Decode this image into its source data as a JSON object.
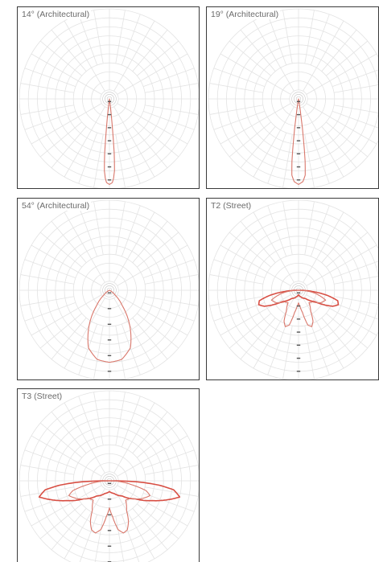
{
  "colors": {
    "grid": "#e3e3e3",
    "grid_center": "#cfcfcf",
    "curve": "#d9776b",
    "curve_strong": "#d84f44",
    "tick": "#555555",
    "border": "#3a3a3a"
  },
  "chart_data": [
    {
      "type": "polar",
      "title": "14° (Architectural)",
      "grid": true,
      "series": [
        {
          "values": [
            [
              0,
              95
            ],
            [
              2,
              93
            ],
            [
              3,
              88
            ],
            [
              4,
              80
            ],
            [
              5,
              60
            ],
            [
              6,
              30
            ],
            [
              7,
              10
            ],
            [
              8,
              0
            ]
          ]
        }
      ]
    },
    {
      "type": "polar",
      "title": "19° (Architectural)",
      "grid": true,
      "series": [
        {
          "values": [
            [
              0,
              95
            ],
            [
              3,
              92
            ],
            [
              5,
              85
            ],
            [
              6,
              70
            ],
            [
              7,
              45
            ],
            [
              8,
              20
            ],
            [
              9,
              5
            ],
            [
              10,
              0
            ]
          ]
        }
      ]
    },
    {
      "type": "polar",
      "title": "54° (Architectural)",
      "grid": true,
      "series": [
        {
          "values": [
            [
              0,
              80
            ],
            [
              10,
              78
            ],
            [
              20,
              68
            ],
            [
              30,
              45
            ],
            [
              40,
              22
            ],
            [
              50,
              8
            ],
            [
              60,
              2
            ],
            [
              70,
              0
            ]
          ]
        }
      ]
    },
    {
      "type": "polar",
      "title": "T2 (Street)",
      "grid": true,
      "series": [
        {
          "values": [
            [
              0,
              5
            ],
            [
              20,
              8
            ],
            [
              40,
              12
            ],
            [
              55,
              22
            ],
            [
              60,
              32
            ],
            [
              65,
              42
            ],
            [
              70,
              47
            ],
            [
              75,
              45
            ],
            [
              80,
              32
            ],
            [
              85,
              15
            ],
            [
              90,
              0
            ]
          ]
        },
        {
          "values": [
            [
              0,
              14
            ],
            [
              5,
              18
            ],
            [
              10,
              25
            ],
            [
              15,
              40
            ],
            [
              20,
              43
            ],
            [
              25,
              38
            ],
            [
              30,
              27
            ],
            [
              40,
              18
            ],
            [
              50,
              20
            ],
            [
              60,
              28
            ],
            [
              70,
              32
            ],
            [
              80,
              18
            ],
            [
              90,
              0
            ]
          ]
        }
      ]
    },
    {
      "type": "polar",
      "title": "T3 (Street)",
      "grid": true,
      "series": [
        {
          "values": [
            [
              0,
              12
            ],
            [
              20,
              15
            ],
            [
              40,
              22
            ],
            [
              55,
              35
            ],
            [
              65,
              52
            ],
            [
              72,
              68
            ],
            [
              77,
              80
            ],
            [
              82,
              72
            ],
            [
              85,
              55
            ],
            [
              88,
              30
            ],
            [
              90,
              0
            ]
          ]
        },
        {
          "values": [
            [
              0,
              30
            ],
            [
              5,
              40
            ],
            [
              10,
              55
            ],
            [
              15,
              60
            ],
            [
              20,
              58
            ],
            [
              25,
              50
            ],
            [
              30,
              38
            ],
            [
              40,
              28
            ],
            [
              50,
              30
            ],
            [
              60,
              40
            ],
            [
              70,
              48
            ],
            [
              75,
              42
            ],
            [
              80,
              25
            ],
            [
              90,
              0
            ]
          ]
        }
      ]
    }
  ]
}
